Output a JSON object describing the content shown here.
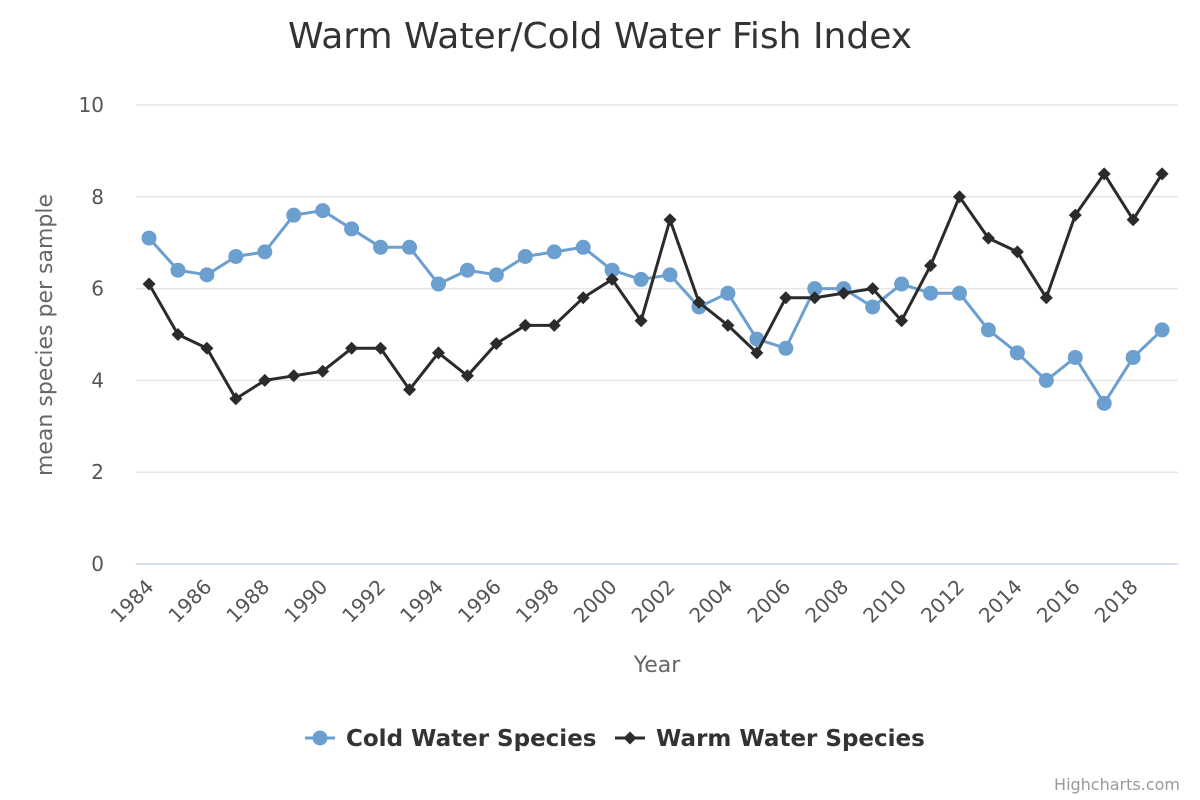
{
  "chart_data": {
    "type": "line",
    "title": "Warm Water/Cold Water Fish Index",
    "xlabel": "Year",
    "ylabel": "mean species per sample",
    "ylim": [
      0,
      10
    ],
    "yticks": [
      0,
      2,
      4,
      6,
      8,
      10
    ],
    "xticks": [
      1984,
      1986,
      1988,
      1990,
      1992,
      1994,
      1996,
      1998,
      2000,
      2002,
      2004,
      2006,
      2008,
      2010,
      2012,
      2014,
      2016,
      2018
    ],
    "x": [
      1984,
      1985,
      1986,
      1987,
      1988,
      1989,
      1990,
      1991,
      1992,
      1993,
      1994,
      1995,
      1996,
      1997,
      1998,
      1999,
      2000,
      2001,
      2002,
      2003,
      2004,
      2005,
      2006,
      2007,
      2008,
      2009,
      2010,
      2011,
      2012,
      2013,
      2014,
      2015,
      2016,
      2017,
      2018,
      2019
    ],
    "grid": true,
    "legend": "bottom-center",
    "series": [
      {
        "name": "Cold Water Species",
        "color": "#6a9fd0",
        "marker": "circle",
        "values": [
          7.1,
          6.4,
          6.3,
          6.7,
          6.8,
          7.6,
          7.7,
          7.3,
          6.9,
          6.9,
          6.1,
          6.4,
          6.3,
          6.7,
          6.8,
          6.9,
          6.4,
          6.2,
          6.3,
          5.6,
          5.9,
          4.9,
          4.7,
          6.0,
          6.0,
          5.6,
          6.1,
          5.9,
          5.9,
          5.1,
          4.6,
          4.0,
          4.5,
          3.5,
          4.5,
          5.1
        ]
      },
      {
        "name": "Warm Water Species",
        "color": "#2b2b2b",
        "marker": "diamond",
        "values": [
          6.1,
          5.0,
          4.7,
          3.6,
          4.0,
          4.1,
          4.2,
          4.7,
          4.7,
          3.8,
          4.6,
          4.1,
          4.8,
          5.2,
          5.2,
          5.8,
          6.2,
          5.3,
          7.5,
          5.7,
          5.2,
          4.6,
          5.8,
          5.8,
          5.9,
          6.0,
          5.3,
          6.5,
          8.0,
          7.1,
          6.8,
          5.8,
          7.6,
          8.5,
          7.5,
          8.5
        ]
      }
    ]
  },
  "credits": "Highcharts.com"
}
